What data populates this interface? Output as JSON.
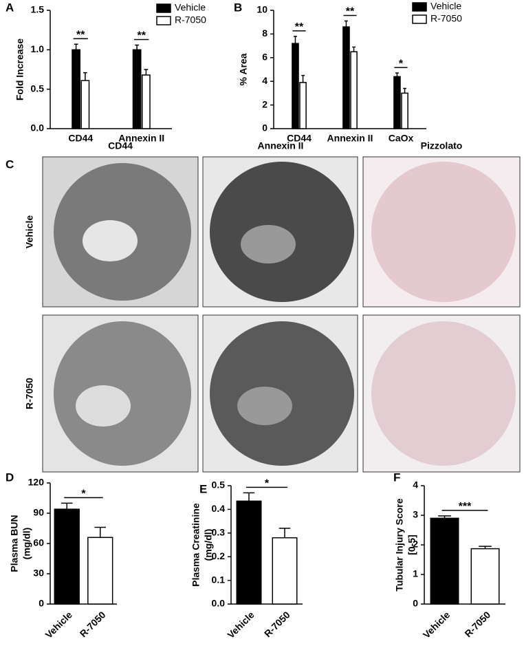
{
  "chart_data": [
    {
      "type": "bar",
      "panel": "A",
      "ylabel": [
        "Fold Increase"
      ],
      "categories": [
        "CD44",
        "Annexin II"
      ],
      "series": [
        {
          "name": "Vehicle",
          "color": "#000000",
          "values": [
            1.0,
            1.0
          ],
          "errors": [
            0.07,
            0.06
          ]
        },
        {
          "name": "R-7050",
          "color": "#ffffff",
          "values": [
            0.61,
            0.68
          ],
          "errors": [
            0.1,
            0.07
          ]
        }
      ],
      "significance": [
        "**",
        "**"
      ],
      "ylim": [
        0,
        1.5
      ],
      "yticks": [
        {
          "value": 0,
          "label": "0.0"
        },
        0.5,
        {
          "value": 1,
          "label": "1.0"
        },
        1.5
      ],
      "legend": "top-right"
    },
    {
      "type": "bar",
      "panel": "B",
      "ylabel": [
        "% Area"
      ],
      "categories": [
        "CD44",
        "Annexin II",
        "CaOx"
      ],
      "series": [
        {
          "name": "Vehicle",
          "color": "#000000",
          "values": [
            7.2,
            8.6,
            4.4
          ],
          "errors": [
            0.6,
            0.5,
            0.3
          ]
        },
        {
          "name": "R-7050",
          "color": "#ffffff",
          "values": [
            3.9,
            6.5,
            3.0
          ],
          "errors": [
            0.6,
            0.4,
            0.4
          ]
        }
      ],
      "significance": [
        "**",
        "**",
        "*"
      ],
      "ylim": [
        0,
        10
      ],
      "yticks": [
        0,
        2,
        4,
        6,
        8,
        10
      ],
      "legend": "top-right"
    },
    {
      "type": "bar",
      "panel": "D",
      "ylabel": [
        "Plasma BUN",
        "(mg/dl)"
      ],
      "categories": [
        "Vehicle",
        "R-7050"
      ],
      "series": [
        {
          "colors": [
            "#000000",
            "#ffffff"
          ],
          "values": [
            94,
            66
          ],
          "errors": [
            6,
            10
          ]
        }
      ],
      "significance": [
        "*"
      ],
      "ylim": [
        0,
        120
      ],
      "yticks": [
        0,
        30,
        60,
        90,
        120
      ]
    },
    {
      "type": "bar",
      "panel": "E",
      "ylabel": [
        "Plasma Creatinine",
        "(mg/dl)"
      ],
      "categories": [
        "Vehicle",
        "R-7050"
      ],
      "series": [
        {
          "colors": [
            "#000000",
            "#ffffff"
          ],
          "values": [
            0.435,
            0.28
          ],
          "errors": [
            0.035,
            0.04
          ]
        }
      ],
      "significance": [
        "*"
      ],
      "ylim": [
        0,
        0.5
      ],
      "yticks": [
        {
          "value": 0,
          "label": "0.0"
        },
        0.1,
        0.2,
        0.3,
        0.4,
        0.5
      ]
    },
    {
      "type": "bar",
      "panel": "F",
      "ylabel": [
        "Tubular Injury Score",
        "[0-5]"
      ],
      "categories": [
        "Vehicle",
        "R-7050"
      ],
      "series": [
        {
          "colors": [
            "#000000",
            "#ffffff"
          ],
          "values": [
            2.9,
            1.87
          ],
          "errors": [
            0.08,
            0.08
          ]
        }
      ],
      "significance": [
        "***"
      ],
      "ylim": [
        0,
        4
      ],
      "yticks": [
        0,
        1,
        2,
        3,
        4
      ]
    }
  ],
  "image_panel": {
    "label": "C",
    "columns": [
      "CD44",
      "Annexin II",
      "Pizzolato"
    ],
    "rows": [
      "Vehicle",
      "R-7050"
    ]
  }
}
